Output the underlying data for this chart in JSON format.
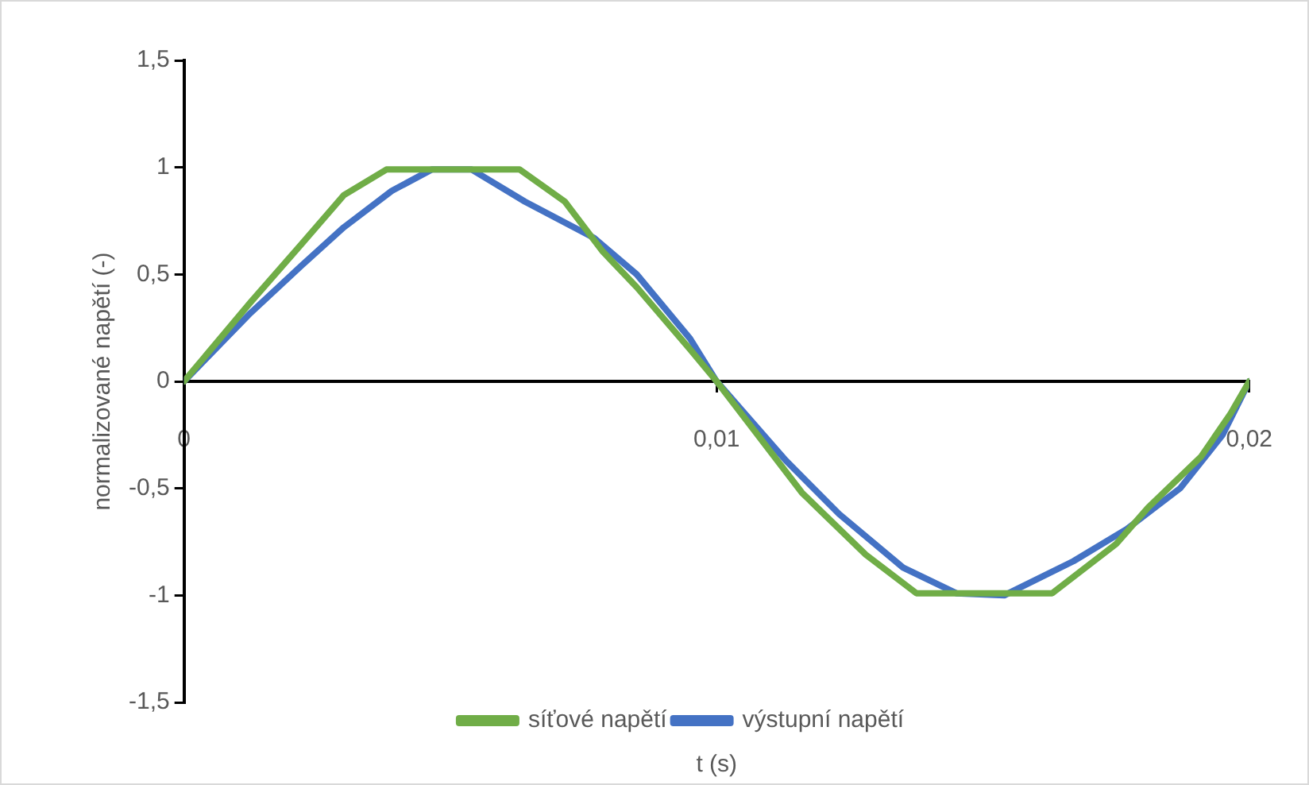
{
  "chart_data": {
    "type": "line",
    "xlabel": "t (s)",
    "ylabel": "normalizované napětí (-)",
    "xlim": [
      0,
      0.02
    ],
    "ylim": [
      -1.5,
      1.5
    ],
    "xticks": [
      {
        "value": 0,
        "label": "0"
      },
      {
        "value": 0.01,
        "label": "0,01"
      },
      {
        "value": 0.02,
        "label": "0,02"
      }
    ],
    "yticks": [
      {
        "value": -1.5,
        "label": "-1,5"
      },
      {
        "value": -1,
        "label": "-1"
      },
      {
        "value": -0.5,
        "label": "-0,5"
      },
      {
        "value": 0,
        "label": "0"
      },
      {
        "value": 0.5,
        "label": "0,5"
      },
      {
        "value": 1,
        "label": "1"
      },
      {
        "value": 1.5,
        "label": "1,5"
      }
    ],
    "grid": false,
    "legend": "bottom",
    "marker": "none",
    "line_style": "solid",
    "series": [
      {
        "name": "síťové napětí",
        "color": "#70ad47",
        "x": [
          0,
          0.00125,
          0.0022,
          0.003,
          0.0038,
          0.0063,
          0.00715,
          0.00785,
          0.0085,
          0.0095,
          0.01,
          0.0116,
          0.0128,
          0.01375,
          0.0163,
          0.0175,
          0.0181,
          0.0191,
          0.01965,
          0.02
        ],
        "values": [
          0,
          0.37,
          0.64,
          0.87,
          0.99,
          0.99,
          0.84,
          0.61,
          0.44,
          0.15,
          0,
          -0.52,
          -0.81,
          -0.99,
          -0.99,
          -0.76,
          -0.59,
          -0.35,
          -0.15,
          0
        ]
      },
      {
        "name": "výstupní napětí",
        "color": "#4472c4",
        "x": [
          0,
          0.00125,
          0.0022,
          0.003,
          0.0039,
          0.00465,
          0.0054,
          0.0064,
          0.0077,
          0.0085,
          0.0095,
          0.01,
          0.0113,
          0.0123,
          0.0135,
          0.0145,
          0.0154,
          0.0167,
          0.0177,
          0.0187,
          0.0195,
          0.02
        ],
        "values": [
          0,
          0.32,
          0.54,
          0.72,
          0.89,
          0.99,
          0.99,
          0.84,
          0.67,
          0.5,
          0.2,
          0,
          -0.37,
          -0.62,
          -0.87,
          -0.99,
          -1,
          -0.84,
          -0.69,
          -0.5,
          -0.25,
          0
        ]
      }
    ]
  }
}
